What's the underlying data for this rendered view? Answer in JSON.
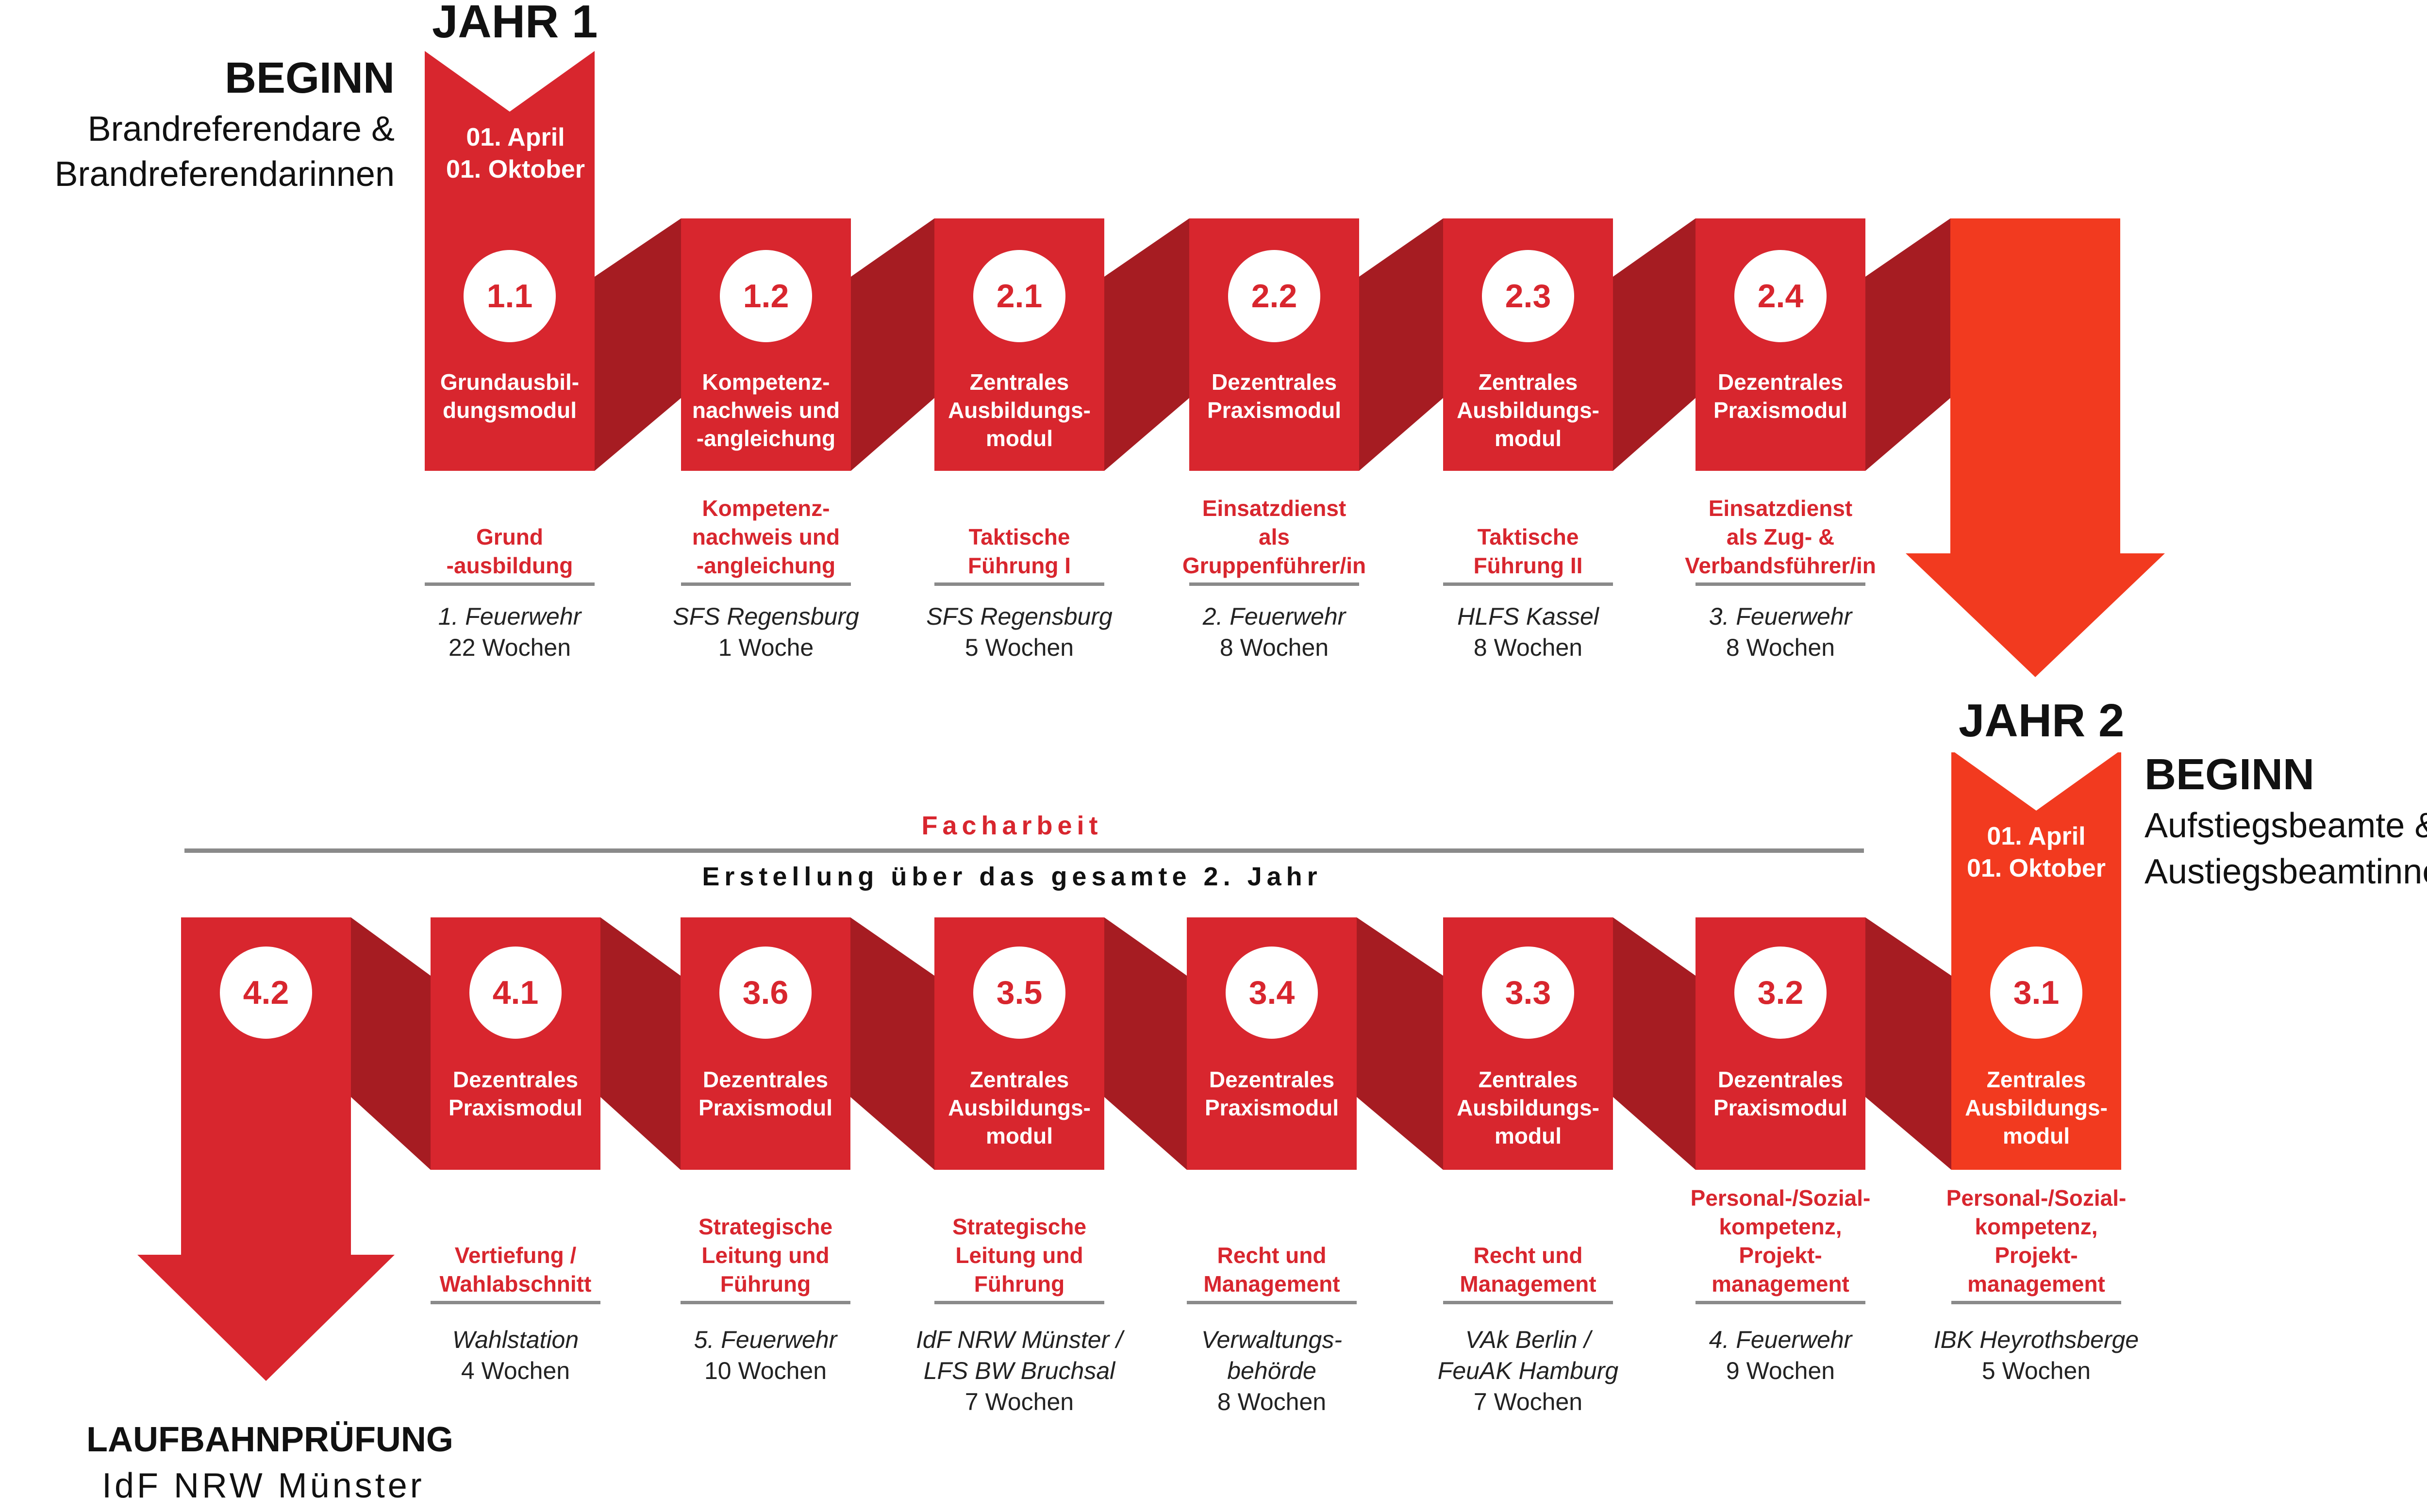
{
  "colors": {
    "accent": "#d8262e",
    "ribbon_fold": "#a61c22",
    "arrow": "#f23a1f",
    "rule": "#8a8a8a"
  },
  "year1": {
    "label": "JAHR 1",
    "begin_heading": "BEGINN",
    "begin_line1": "Brandreferendare &",
    "begin_line2": "Brandreferendarinnen",
    "date1": "01. April",
    "date2": "01. Oktober"
  },
  "year2": {
    "label": "JAHR 2",
    "begin_heading": "BEGINN",
    "begin_line1": "Aufstiegsbeamte &",
    "begin_line2": "Austiegsbeamtinnen",
    "date1": "01. April",
    "date2": "01. Oktober"
  },
  "facharbeit": {
    "title": "Facharbeit",
    "subtitle": "Erstellung über das gesamte 2. Jahr"
  },
  "final_exam": {
    "title": "LAUFBAHNPRÜFUNG",
    "location": "IdF NRW Münster"
  },
  "row1": [
    {
      "num": "1.1",
      "title": [
        "Grundausbil-",
        "dungsmodul"
      ],
      "subject": [
        "Grund",
        "-ausbildung"
      ],
      "location": [
        "1. Feuerwehr"
      ],
      "duration": "22 Wochen"
    },
    {
      "num": "1.2",
      "title": [
        "Kompetenz-",
        "nachweis und",
        "-angleichung"
      ],
      "subject": [
        "Kompetenz-",
        "nachweis und",
        "-angleichung"
      ],
      "location": [
        "SFS Regensburg"
      ],
      "duration": "1 Woche"
    },
    {
      "num": "2.1",
      "title": [
        "Zentrales",
        "Ausbildungs-",
        "modul"
      ],
      "subject": [
        "Taktische",
        "Führung I"
      ],
      "location": [
        "SFS Regensburg"
      ],
      "duration": "5 Wochen"
    },
    {
      "num": "2.2",
      "title": [
        "Dezentrales",
        "Praxismodul"
      ],
      "subject": [
        "Einsatzdienst",
        "als",
        "Gruppenführer/in"
      ],
      "location": [
        "2. Feuerwehr"
      ],
      "duration": "8 Wochen"
    },
    {
      "num": "2.3",
      "title": [
        "Zentrales",
        "Ausbildungs-",
        "modul"
      ],
      "subject": [
        "Taktische",
        "Führung II"
      ],
      "location": [
        "HLFS Kassel"
      ],
      "duration": "8 Wochen"
    },
    {
      "num": "2.4",
      "title": [
        "Dezentrales",
        "Praxismodul"
      ],
      "subject": [
        "Einsatzdienst",
        "als Zug- &",
        "Verbandsführer/in"
      ],
      "location": [
        "3. Feuerwehr"
      ],
      "duration": "8 Wochen"
    }
  ],
  "row2": [
    {
      "num": "4.2",
      "title": [],
      "subject": [],
      "location": [],
      "duration": ""
    },
    {
      "num": "4.1",
      "title": [
        "Dezentrales",
        "Praxismodul"
      ],
      "subject": [
        "Vertiefung /",
        "Wahlabschnitt"
      ],
      "location": [
        "Wahlstation"
      ],
      "duration": "4 Wochen"
    },
    {
      "num": "3.6",
      "title": [
        "Dezentrales",
        "Praxismodul"
      ],
      "subject": [
        "Strategische",
        "Leitung und",
        "Führung"
      ],
      "location": [
        "5. Feuerwehr"
      ],
      "duration": "10 Wochen"
    },
    {
      "num": "3.5",
      "title": [
        "Zentrales",
        "Ausbildungs-",
        "modul"
      ],
      "subject": [
        "Strategische",
        "Leitung und",
        "Führung"
      ],
      "location": [
        "IdF NRW Münster /",
        "LFS BW Bruchsal"
      ],
      "duration": "7 Wochen"
    },
    {
      "num": "3.4",
      "title": [
        "Dezentrales",
        "Praxismodul"
      ],
      "subject": [
        "Recht und",
        "Management"
      ],
      "location": [
        "Verwaltungs-",
        "behörde"
      ],
      "duration": "8 Wochen"
    },
    {
      "num": "3.3",
      "title": [
        "Zentrales",
        "Ausbildungs-",
        "modul"
      ],
      "subject": [
        "Recht und",
        "Management"
      ],
      "location": [
        "VAk Berlin /",
        "FeuAK Hamburg"
      ],
      "duration": "7 Wochen"
    },
    {
      "num": "3.2",
      "title": [
        "Dezentrales",
        "Praxismodul"
      ],
      "subject": [
        "Personal-/Sozial-",
        "kompetenz,",
        "Projekt-",
        "management"
      ],
      "location": [
        "4. Feuerwehr"
      ],
      "duration": "9 Wochen"
    },
    {
      "num": "3.1",
      "title": [
        "Zentrales",
        "Ausbildungs-",
        "modul"
      ],
      "subject": [
        "Personal-/Sozial-",
        "kompetenz,",
        "Projekt-",
        "management"
      ],
      "location": [
        "IBK Heyrothsberge"
      ],
      "duration": "5 Wochen"
    }
  ]
}
